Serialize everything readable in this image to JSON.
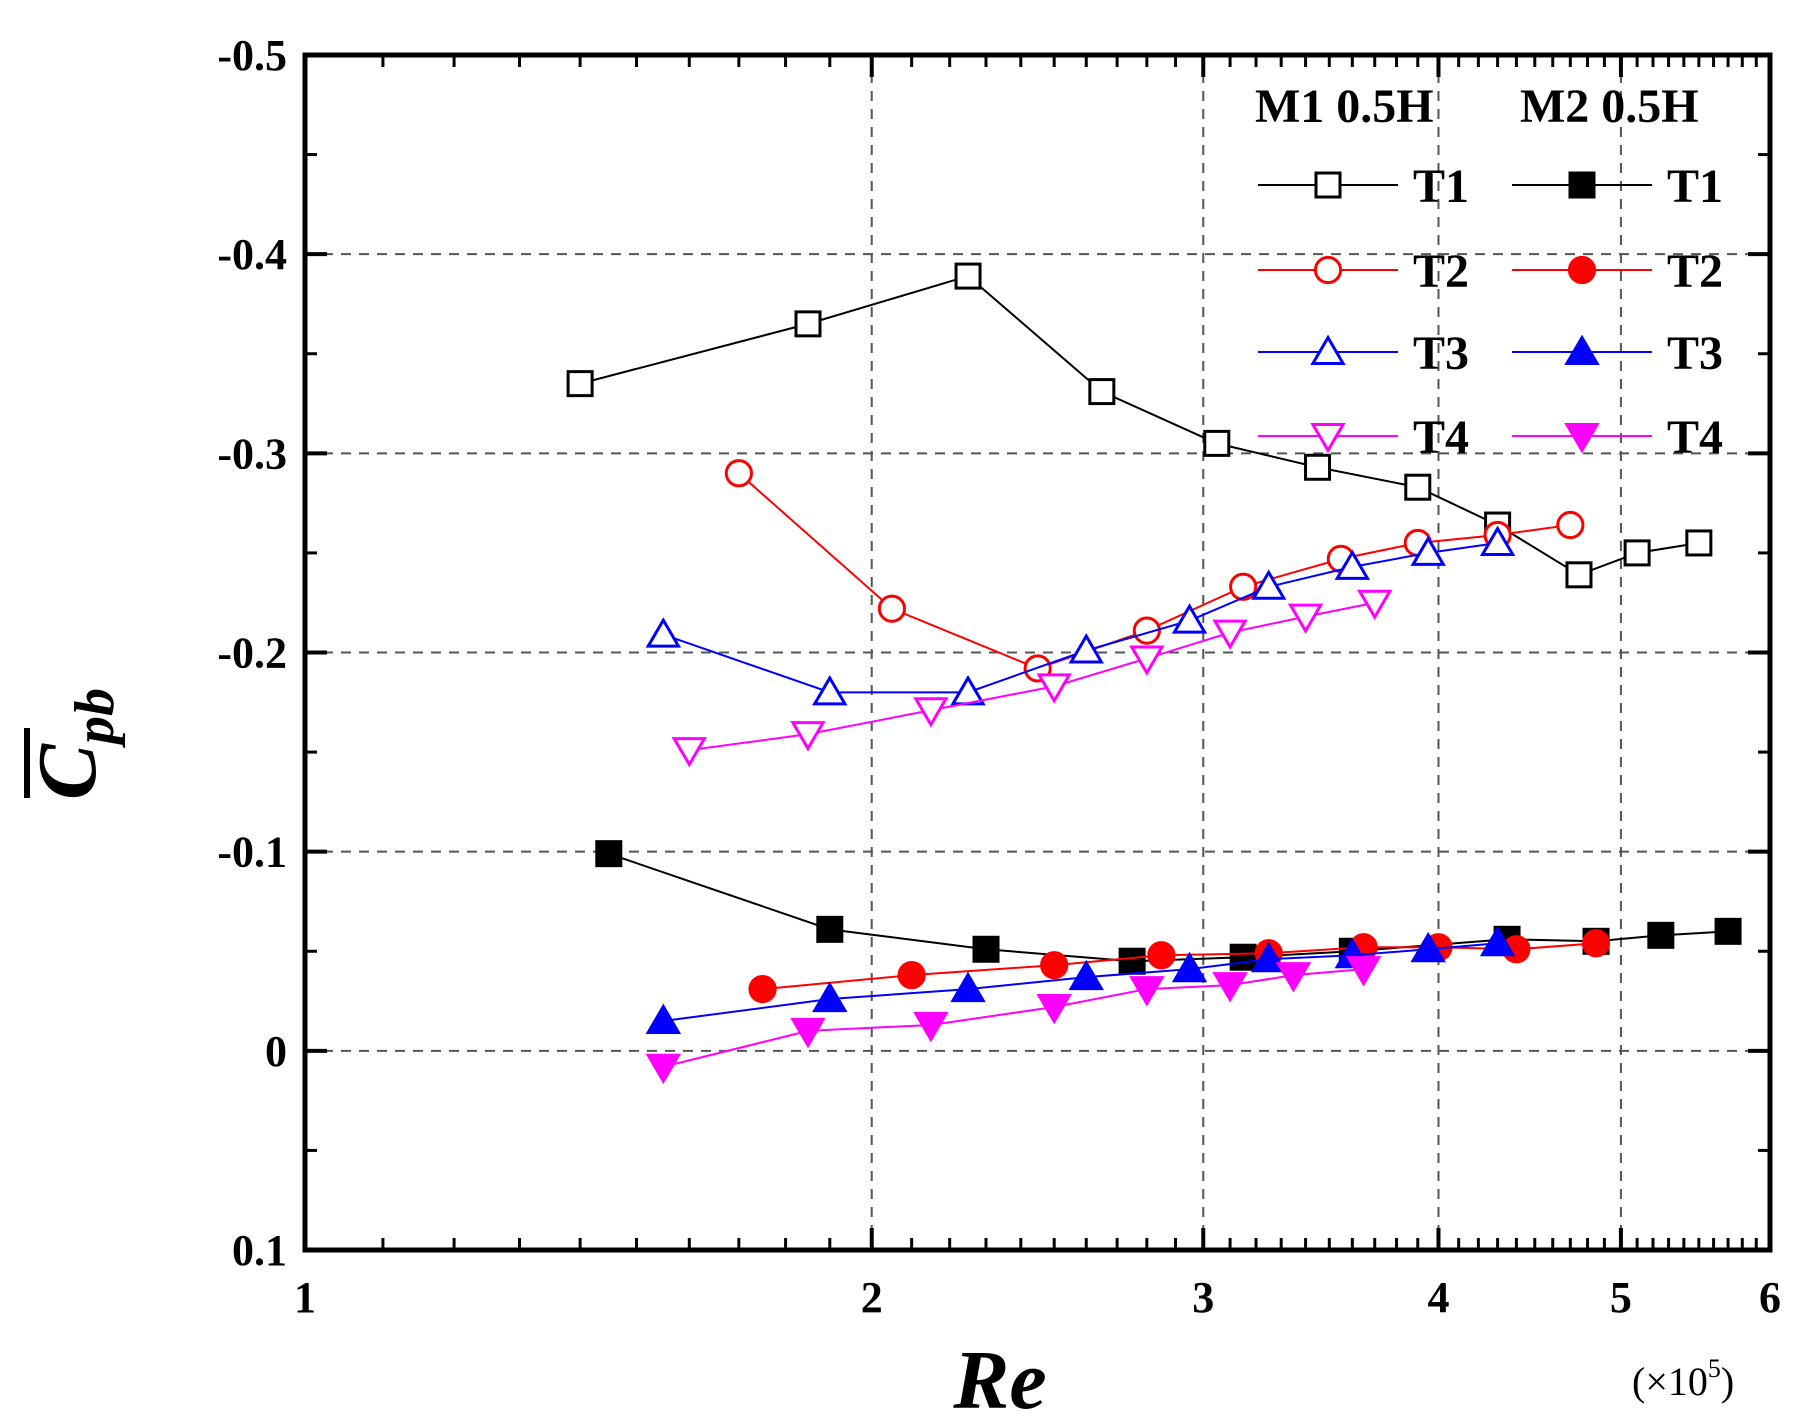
{
  "chart_data": {
    "type": "line",
    "xlabel": "Re",
    "xscale": "log",
    "x_unit": "(×10^5)",
    "x_unit_parts": {
      "pre": "(×10",
      "exp": "5",
      "post": ")"
    },
    "ylabel": {
      "base": "C",
      "sub": "pb",
      "overbar": true
    },
    "xlim": [
      1,
      6
    ],
    "ylim": [
      0.1,
      -0.5
    ],
    "y_reversed": true,
    "x_ticks": [
      1,
      2,
      3,
      4,
      5,
      6
    ],
    "x_tick_labels": [
      "1",
      "2",
      "3",
      "4",
      "5",
      "6"
    ],
    "y_ticks": [
      -0.5,
      -0.4,
      -0.3,
      -0.2,
      -0.1,
      0,
      0.1
    ],
    "y_tick_labels": [
      "-0.5",
      "-0.4",
      "-0.3",
      "-0.2",
      "-0.1",
      "0",
      "0.1"
    ],
    "grid": true,
    "legend_position": "top-right",
    "legend_headers": [
      "M1  0.5H",
      "M2  0.5H"
    ],
    "series": [
      {
        "name": "T1",
        "group": "M1 0.5H",
        "color": "#000000",
        "marker": "square",
        "filled": false,
        "x": [
          1.4,
          1.85,
          2.25,
          2.65,
          3.05,
          3.45,
          3.9,
          4.3,
          4.75,
          5.1,
          5.5
        ],
        "y": [
          -0.335,
          -0.365,
          -0.389,
          -0.331,
          -0.305,
          -0.293,
          -0.283,
          -0.264,
          -0.239,
          -0.25,
          -0.255
        ]
      },
      {
        "name": "T2",
        "group": "M1 0.5H",
        "color": "#ff0000",
        "marker": "circle",
        "filled": false,
        "x": [
          1.7,
          2.05,
          2.45,
          2.8,
          3.15,
          3.55,
          3.9,
          4.3,
          4.7
        ],
        "y": [
          -0.29,
          -0.222,
          -0.192,
          -0.211,
          -0.233,
          -0.247,
          -0.255,
          -0.259,
          -0.264
        ]
      },
      {
        "name": "T3",
        "group": "M1 0.5H",
        "color": "#0000ff",
        "marker": "triangle-up",
        "filled": false,
        "x": [
          1.55,
          1.9,
          2.25,
          2.6,
          2.95,
          3.25,
          3.6,
          3.95,
          4.3
        ],
        "y": [
          -0.209,
          -0.18,
          -0.18,
          -0.201,
          -0.216,
          -0.233,
          -0.243,
          -0.25,
          -0.255
        ]
      },
      {
        "name": "T4",
        "group": "M1 0.5H",
        "color": "#ff00ff",
        "marker": "triangle-down",
        "filled": false,
        "x": [
          1.6,
          1.85,
          2.15,
          2.5,
          2.8,
          3.1,
          3.4,
          3.7
        ],
        "y": [
          -0.151,
          -0.159,
          -0.171,
          -0.183,
          -0.197,
          -0.21,
          -0.218,
          -0.225
        ]
      },
      {
        "name": "T1",
        "group": "M2 0.5H",
        "color": "#000000",
        "marker": "square",
        "filled": true,
        "x": [
          1.45,
          1.9,
          2.3,
          2.75,
          3.15,
          3.6,
          4.35,
          4.85,
          5.25,
          5.7
        ],
        "y": [
          -0.099,
          -0.061,
          -0.051,
          -0.045,
          -0.047,
          -0.05,
          -0.056,
          -0.055,
          -0.058,
          -0.06
        ]
      },
      {
        "name": "T2",
        "group": "M2 0.5H",
        "color": "#ff0000",
        "marker": "circle",
        "filled": true,
        "x": [
          1.75,
          2.1,
          2.5,
          2.85,
          3.25,
          3.65,
          4.0,
          4.4,
          4.85
        ],
        "y": [
          -0.031,
          -0.038,
          -0.043,
          -0.048,
          -0.049,
          -0.052,
          -0.052,
          -0.051,
          -0.054
        ]
      },
      {
        "name": "T3",
        "group": "M2 0.5H",
        "color": "#0000ff",
        "marker": "triangle-up",
        "filled": true,
        "x": [
          1.55,
          1.9,
          2.25,
          2.6,
          2.95,
          3.25,
          3.6,
          3.95,
          4.3
        ],
        "y": [
          -0.015,
          -0.026,
          -0.031,
          -0.037,
          -0.041,
          -0.046,
          -0.048,
          -0.051,
          -0.054
        ]
      },
      {
        "name": "T4",
        "group": "M2 0.5H",
        "color": "#ff00ff",
        "marker": "triangle-down",
        "filled": true,
        "x": [
          1.55,
          1.85,
          2.15,
          2.5,
          2.8,
          3.1,
          3.35,
          3.65
        ],
        "y": [
          0.008,
          -0.01,
          -0.013,
          -0.022,
          -0.031,
          -0.033,
          -0.038,
          -0.041
        ]
      }
    ]
  }
}
